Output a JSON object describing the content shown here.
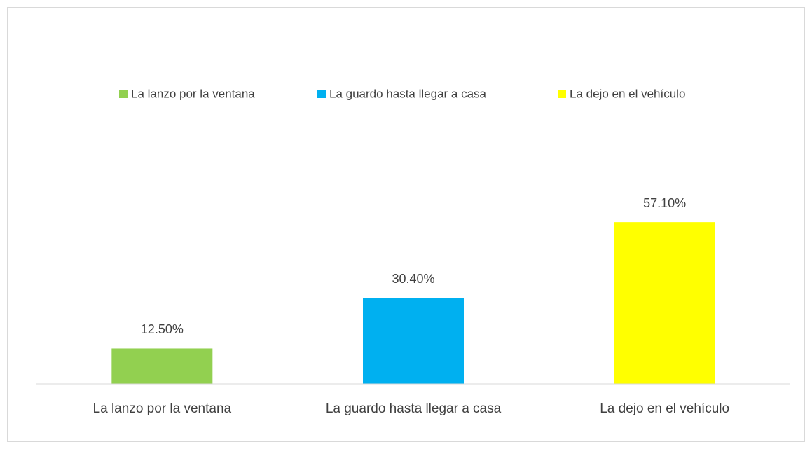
{
  "chart_data": {
    "type": "bar",
    "categories": [
      "La lanzo por la ventana",
      "La guardo hasta llegar a casa",
      "La dejo en el vehículo"
    ],
    "values": [
      12.5,
      30.4,
      57.1
    ],
    "value_labels": [
      "12.50%",
      "30.40%",
      "57.10%"
    ],
    "colors": [
      "#92D050",
      "#00B0F0",
      "#FFFF00"
    ],
    "ylim": [
      0,
      70
    ],
    "legend": "top"
  }
}
